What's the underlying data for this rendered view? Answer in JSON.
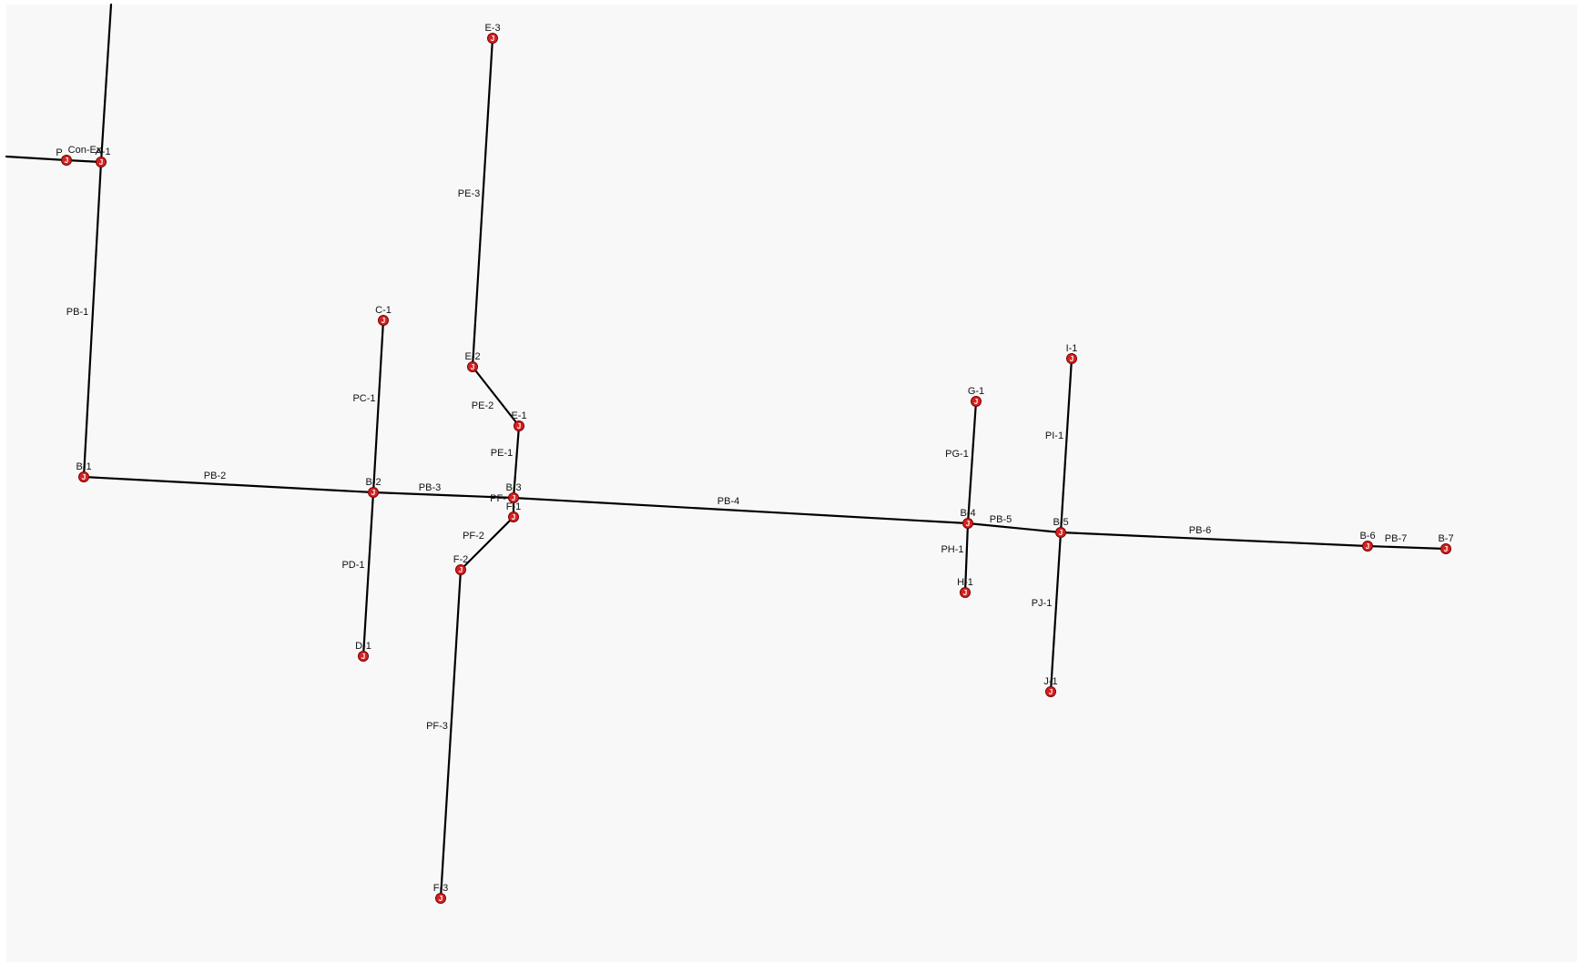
{
  "colors": {
    "background": "#f8f8f8",
    "pipe": "#000000",
    "junction_fill": "#d42222",
    "junction_stroke": "#7a0000",
    "label": "#111111"
  },
  "junction_glyph": "J",
  "junctions": [
    {
      "id": "P",
      "label": "P"
    },
    {
      "id": "A-1",
      "label": "A-1"
    },
    {
      "id": "B-1",
      "label": "B-1"
    },
    {
      "id": "B-2",
      "label": "B-2"
    },
    {
      "id": "C-1",
      "label": "C-1"
    },
    {
      "id": "D-1",
      "label": "D-1"
    },
    {
      "id": "B-3",
      "label": "B-3"
    },
    {
      "id": "E-1",
      "label": "E-1"
    },
    {
      "id": "E-2",
      "label": "E-2"
    },
    {
      "id": "E-3",
      "label": "E-3"
    },
    {
      "id": "F-1",
      "label": "F-1"
    },
    {
      "id": "F-2",
      "label": "F-2"
    },
    {
      "id": "F-3",
      "label": "F-3"
    },
    {
      "id": "B-4",
      "label": "B-4"
    },
    {
      "id": "G-1",
      "label": "G-1"
    },
    {
      "id": "H-1",
      "label": "H-1"
    },
    {
      "id": "B-5",
      "label": "B-5"
    },
    {
      "id": "I-1",
      "label": "I-1"
    },
    {
      "id": "J-1",
      "label": "J-1"
    },
    {
      "id": "B-6",
      "label": "B-6"
    },
    {
      "id": "B-7",
      "label": "B-7"
    }
  ],
  "pipes": [
    {
      "id": "P-in",
      "label": "",
      "from": "edge-left",
      "to": "P"
    },
    {
      "id": "Con-Ex",
      "label": "Con-Ex",
      "from": "P",
      "to": "A-1"
    },
    {
      "id": "P-top",
      "label": "",
      "from": "edge-top",
      "to": "A-1"
    },
    {
      "id": "PB-1",
      "label": "PB-1",
      "from": "A-1",
      "to": "B-1"
    },
    {
      "id": "PB-2",
      "label": "PB-2",
      "from": "B-1",
      "to": "B-2"
    },
    {
      "id": "PC-1",
      "label": "PC-1",
      "from": "B-2",
      "to": "C-1"
    },
    {
      "id": "PD-1",
      "label": "PD-1",
      "from": "B-2",
      "to": "D-1"
    },
    {
      "id": "PB-3",
      "label": "PB-3",
      "from": "B-2",
      "to": "B-3"
    },
    {
      "id": "PE-1",
      "label": "PE-1",
      "from": "B-3",
      "to": "E-1"
    },
    {
      "id": "PE-2",
      "label": "PE-2",
      "from": "E-1",
      "to": "E-2"
    },
    {
      "id": "PE-3",
      "label": "PE-3",
      "from": "E-2",
      "to": "E-3"
    },
    {
      "id": "PF-1",
      "label": "PF-",
      "from": "B-3",
      "to": "F-1"
    },
    {
      "id": "PF-2",
      "label": "PF-2",
      "from": "F-1",
      "to": "F-2"
    },
    {
      "id": "PF-3",
      "label": "PF-3",
      "from": "F-2",
      "to": "F-3"
    },
    {
      "id": "PB-4",
      "label": "PB-4",
      "from": "B-3",
      "to": "B-4"
    },
    {
      "id": "PG-1",
      "label": "PG-1",
      "from": "B-4",
      "to": "G-1"
    },
    {
      "id": "PH-1",
      "label": "PH-1",
      "from": "B-4",
      "to": "H-1"
    },
    {
      "id": "PB-5",
      "label": "PB-5",
      "from": "B-4",
      "to": "B-5"
    },
    {
      "id": "PI-1",
      "label": "PI-1",
      "from": "B-5",
      "to": "I-1"
    },
    {
      "id": "PJ-1",
      "label": "PJ-1",
      "from": "B-5",
      "to": "J-1"
    },
    {
      "id": "PB-6",
      "label": "PB-6",
      "from": "B-5",
      "to": "B-6"
    },
    {
      "id": "PB-7",
      "label": "PB-7",
      "from": "B-6",
      "to": "B-7"
    }
  ]
}
